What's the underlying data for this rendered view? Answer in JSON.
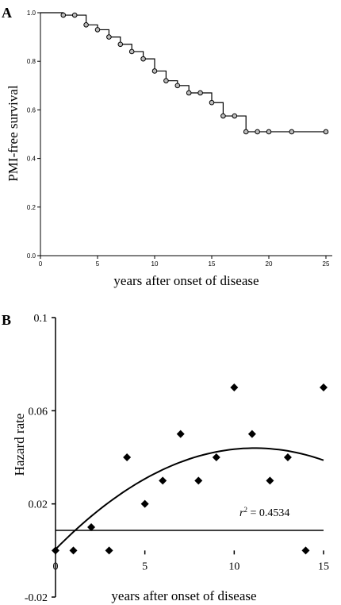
{
  "chart_data": [
    {
      "type": "line",
      "panel_label": "A",
      "xlabel": "years after onset of disease",
      "ylabel": "PMI-free survival",
      "xlim": [
        0,
        25
      ],
      "ylim": [
        0.0,
        1.0
      ],
      "xticks": [
        0,
        5,
        10,
        15,
        20,
        25
      ],
      "yticks": [
        0.0,
        0.2,
        0.4,
        0.6,
        0.8,
        1.0
      ],
      "xtick_labels": [
        "0",
        "5",
        "10",
        "15",
        "20",
        "25"
      ],
      "ytick_labels": [
        "0.0",
        "0.2",
        "0.4",
        "0.6",
        "0.8",
        "1.0"
      ],
      "step": {
        "x": [
          0,
          2,
          4,
          5,
          6,
          7,
          8,
          9,
          10,
          11,
          12,
          13,
          15,
          16,
          18,
          25
        ],
        "y": [
          1.0,
          0.99,
          0.95,
          0.93,
          0.9,
          0.87,
          0.84,
          0.81,
          0.76,
          0.72,
          0.7,
          0.67,
          0.63,
          0.575,
          0.51,
          0.51
        ]
      },
      "censored": {
        "x": [
          2,
          3,
          4,
          5,
          6,
          7,
          8,
          9,
          10,
          11,
          12,
          13,
          14,
          15,
          16,
          17,
          18,
          19,
          20,
          22,
          25
        ],
        "y": [
          0.99,
          0.99,
          0.95,
          0.93,
          0.9,
          0.87,
          0.84,
          0.81,
          0.76,
          0.72,
          0.7,
          0.67,
          0.67,
          0.63,
          0.575,
          0.575,
          0.51,
          0.51,
          0.51,
          0.51,
          0.51
        ]
      }
    },
    {
      "type": "scatter",
      "panel_label": "B",
      "xlabel": "years after onset of disease",
      "ylabel": "Hazard rate",
      "xlim": [
        0,
        15
      ],
      "ylim": [
        -0.02,
        0.1
      ],
      "xticks": [
        0,
        5,
        10,
        15
      ],
      "yticks": [
        -0.02,
        0.02,
        0.06,
        0.1
      ],
      "xtick_labels": [
        "0",
        "5",
        "10",
        "15"
      ],
      "ytick_labels": [
        "-0.02",
        "0.02",
        "0.06",
        "0.1"
      ],
      "points": {
        "x": [
          0,
          1,
          2,
          3,
          4,
          5,
          6,
          7,
          8,
          9,
          10,
          11,
          12,
          13,
          14,
          15
        ],
        "y": [
          0.0,
          0.0,
          0.01,
          0.0,
          0.04,
          0.02,
          0.03,
          0.05,
          0.03,
          0.04,
          0.07,
          0.05,
          0.03,
          0.04,
          0.0,
          0.07
        ]
      },
      "trendline": {
        "type": "quadratic",
        "coefficients": [
          -0.00035,
          0.0078,
          0.0005
        ]
      },
      "annotation": {
        "r_symbol": "r",
        "r_exponent": "2",
        "r_text": " = 0.4534"
      }
    }
  ]
}
